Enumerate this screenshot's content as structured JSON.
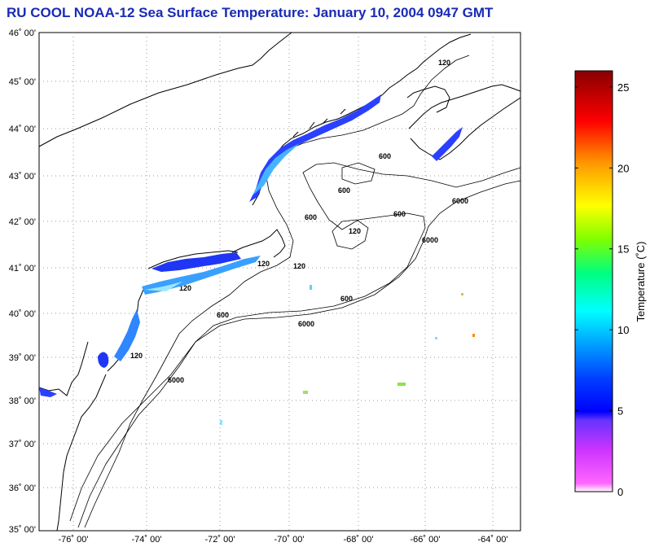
{
  "title": "RU COOL  NOAA-12  Sea Surface Temperature:  January 10, 2004 0947 GMT",
  "latitude_labels": [
    "46˚ 00'",
    "45˚ 00'",
    "44˚ 00'",
    "43˚ 00'",
    "42˚ 00'",
    "41˚ 00'",
    "40˚ 00'",
    "39˚ 00'",
    "38˚ 00'",
    "37˚ 00'",
    "36˚ 00'",
    "35˚ 00'"
  ],
  "longitude_labels": [
    "-76˚ 00'",
    "-74˚ 00'",
    "-72˚ 00'",
    "-70˚ 00'",
    "-68˚ 00'",
    "-66˚ 00'",
    "-64˚ 00'"
  ],
  "colorbar": {
    "label": "Temperature (˚C)",
    "min": 0,
    "max": 26,
    "tick_values": [
      0,
      5,
      10,
      15,
      20,
      25
    ],
    "tick_labels": [
      "0",
      "5",
      "10",
      "15",
      "20",
      "25"
    ]
  },
  "contour_labels": [
    "120",
    "600",
    "600",
    "6000",
    "600",
    "120",
    "600",
    "120",
    "6000",
    "120",
    "600",
    "6000",
    "120",
    "6000",
    "600",
    "120"
  ],
  "colors": {
    "title": "#1a2bb5",
    "coast": "#000000",
    "grid": "#9a9a9a",
    "cold_sst": "#1f3cff",
    "nearshore_sst": "#35a8ff"
  }
}
